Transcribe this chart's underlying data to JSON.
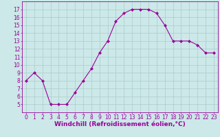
{
  "x": [
    0,
    1,
    2,
    3,
    4,
    5,
    6,
    7,
    8,
    9,
    10,
    11,
    12,
    13,
    14,
    15,
    16,
    17,
    18,
    19,
    20,
    21,
    22,
    23
  ],
  "y": [
    8,
    9,
    8,
    5,
    5,
    5,
    6.5,
    8,
    9.5,
    11.5,
    13,
    15.5,
    16.5,
    17,
    17,
    17,
    16.5,
    15,
    13,
    13,
    13,
    12.5,
    11.5,
    11.5
  ],
  "line_color": "#990099",
  "marker": "D",
  "marker_size": 2.0,
  "bg_color": "#cce8e8",
  "grid_color": "#aacccc",
  "xlabel": "Windchill (Refroidissement éolien,°C)",
  "xlabel_color": "#990099",
  "tick_color": "#990099",
  "ylim": [
    4,
    18
  ],
  "xlim": [
    -0.5,
    23.5
  ],
  "yticks": [
    5,
    6,
    7,
    8,
    9,
    10,
    11,
    12,
    13,
    14,
    15,
    16,
    17
  ],
  "xticks": [
    0,
    1,
    2,
    3,
    4,
    5,
    6,
    7,
    8,
    9,
    10,
    11,
    12,
    13,
    14,
    15,
    16,
    17,
    18,
    19,
    20,
    21,
    22,
    23
  ],
  "tick_fontsize": 5.5,
  "xlabel_fontsize": 6.5
}
